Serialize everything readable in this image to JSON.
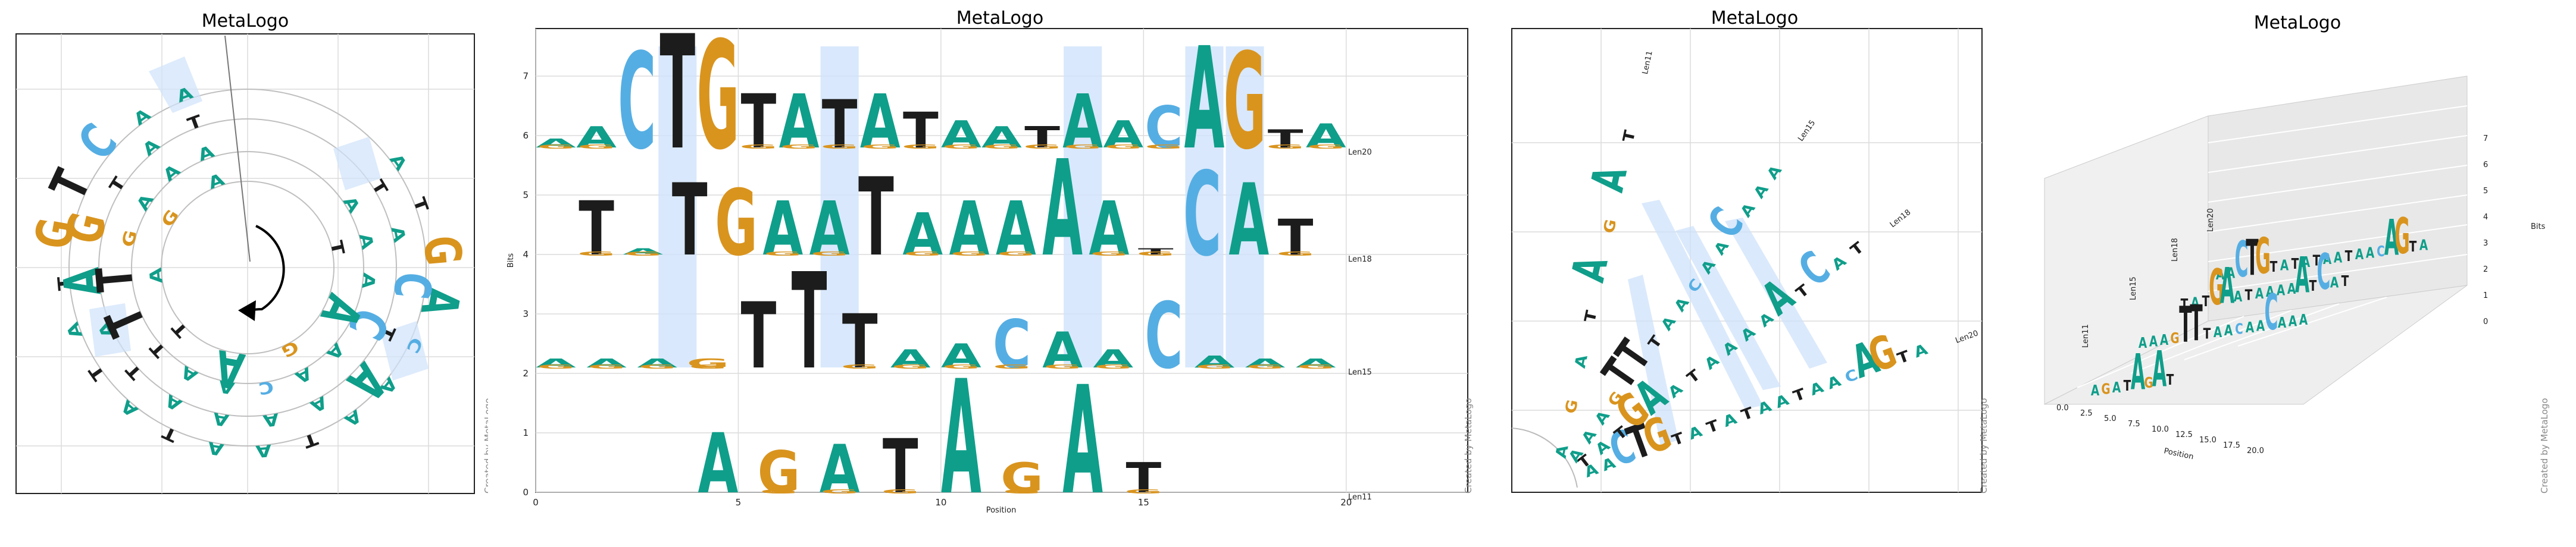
{
  "colors": {
    "A": "#0f9e8a",
    "C": "#55aee3",
    "G": "#d9941e",
    "T": "#1c1c1c",
    "highlight": "#cfe2fb"
  },
  "panels": [
    {
      "title": "MetaLogo",
      "credit": "Created by MetaLogo"
    },
    {
      "title": "MetaLogo",
      "credit": "Created by MetaLogo"
    },
    {
      "title": "MetaLogo",
      "credit": "Created by MetaLogo"
    },
    {
      "title": "MetaLogo",
      "credit": "Created by MetaLogo"
    }
  ],
  "chart_data": [
    {
      "type": "radial",
      "title": "MetaLogo",
      "note": "circular sequence logo; same four groups arranged as concentric rings"
    },
    {
      "type": "bar",
      "title": "MetaLogo",
      "xlabel": "Position",
      "ylabel": "Bits",
      "xlim": [
        0,
        23
      ],
      "ylim": [
        0,
        7.8
      ],
      "xticks": [
        0,
        5,
        10,
        15,
        20
      ],
      "yticks": [
        0,
        1,
        2,
        3,
        4,
        5,
        6,
        7
      ],
      "grid": true,
      "highlight_columns": [
        3,
        7,
        13,
        16,
        17
      ],
      "series": [
        {
          "name": "Len20",
          "baseline": 5.8,
          "sequence": "AACTGTATATAATAACAGTA",
          "heights": [
            0.15,
            0.35,
            1.6,
            1.9,
            1.8,
            0.9,
            0.9,
            0.8,
            0.9,
            0.6,
            0.45,
            0.35,
            0.35,
            0.9,
            0.45,
            0.7,
            1.7,
            1.6,
            0.3,
            0.4
          ]
        },
        {
          "name": "Len18",
          "baseline": 4.0,
          "sequence": "TATGAATAAAAATCAT",
          "heights": [
            0.9,
            0.1,
            1.2,
            1.1,
            0.9,
            0.9,
            1.3,
            0.7,
            0.9,
            0.9,
            1.6,
            0.9,
            0.1,
            1.4,
            1.2,
            0.6
          ]
        },
        {
          "name": "Len15",
          "baseline": 2.1,
          "sequence": "AAAGTTTAACAACAAA",
          "heights": [
            0.15,
            0.15,
            0.15,
            0.15,
            1.1,
            1.6,
            0.9,
            0.3,
            0.4,
            0.8,
            0.6,
            0.3,
            1.1,
            0.2,
            0.15,
            0.15
          ]
        },
        {
          "name": "Len11",
          "baseline": 0.0,
          "sequence": "AGATAGAT",
          "heights": [
            1.0,
            0.7,
            0.8,
            0.9,
            1.9,
            0.5,
            1.8,
            0.5
          ]
        }
      ]
    },
    {
      "type": "radial",
      "title": "MetaLogo",
      "groups": [
        "Len11",
        "Len15",
        "Len18",
        "Len20"
      ]
    },
    {
      "type": "3d-bar",
      "title": "MetaLogo",
      "xlabel": "Position",
      "zlabel": "Bits",
      "xticks": [
        "0.0",
        "2.5",
        "5.0",
        "7.5",
        "10.0",
        "12.5",
        "15.0",
        "17.5",
        "20.0"
      ],
      "zticks": [
        "0",
        "1",
        "2",
        "3",
        "4",
        "5",
        "6",
        "7"
      ],
      "groups": [
        "Len11",
        "Len15",
        "Len18",
        "Len20"
      ]
    }
  ]
}
